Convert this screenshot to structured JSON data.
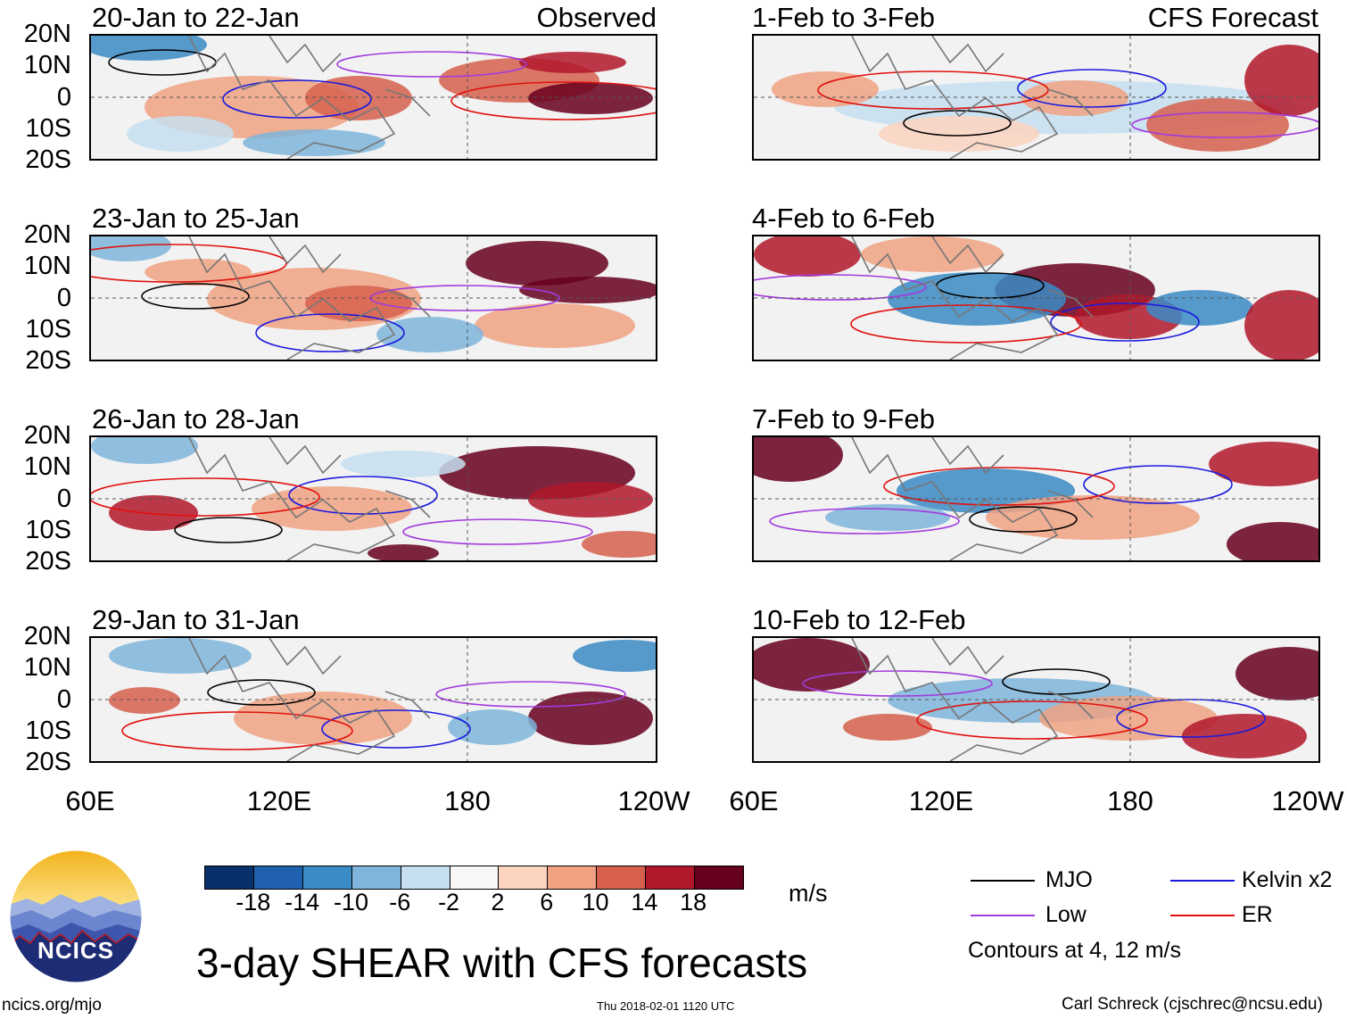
{
  "lat_labels": [
    "20N",
    "10N",
    "0",
    "10S",
    "20S"
  ],
  "lon_labels": [
    "60E",
    "120E",
    "180",
    "120W"
  ],
  "observed_tag": "Observed",
  "forecast_tag": "CFS Forecast",
  "observed_panels": [
    {
      "title": "20-Jan to 22-Jan"
    },
    {
      "title": "23-Jan to 25-Jan"
    },
    {
      "title": "26-Jan to 28-Jan"
    },
    {
      "title": "29-Jan to 31-Jan"
    }
  ],
  "forecast_panels": [
    {
      "title": "1-Feb to 3-Feb"
    },
    {
      "title": "4-Feb to 6-Feb"
    },
    {
      "title": "7-Feb to 9-Feb"
    },
    {
      "title": "10-Feb to 12-Feb"
    }
  ],
  "colorbar": {
    "ticks": [
      "-18",
      "-14",
      "-10",
      "-6",
      "-2",
      "2",
      "6",
      "10",
      "14",
      "18"
    ],
    "colors": [
      "#08306b",
      "#1f61ae",
      "#3b8bc6",
      "#7fb5db",
      "#c6dff0",
      "#f7f7f7",
      "#fcd4c0",
      "#f0a282",
      "#d6604d",
      "#b2182b",
      "#67001f"
    ],
    "units": "m/s"
  },
  "legend": {
    "mjo": {
      "label": "MJO",
      "color": "#000000"
    },
    "kelvin": {
      "label": "Kelvin x2",
      "color": "#1a1adf"
    },
    "low": {
      "label": "Low",
      "color": "#a23bdc"
    },
    "er": {
      "label": "ER",
      "color": "#e0120e"
    },
    "contours_note": "Contours at 4, 12 m/s"
  },
  "logo_text": "NCICS",
  "main_title": "3-day SHEAR with CFS forecasts",
  "footer": {
    "website": "ncics.org/mjo",
    "timestamp": "Thu 2018-02-01 1120 UTC",
    "credit": "Carl Schreck (cjschrec@ncsu.edu)"
  }
}
